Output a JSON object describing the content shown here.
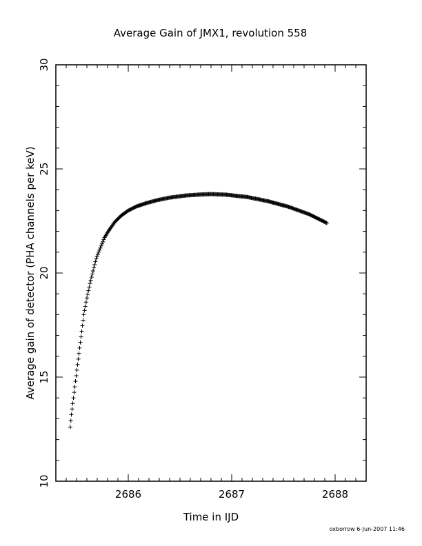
{
  "chart_data": {
    "type": "scatter",
    "title": "Average Gain of JMX1, revolution 558",
    "xlabel": "Time in IJD",
    "ylabel": "Average gain of detector (PHA channels per keV)",
    "xlim": [
      2685.3,
      2688.3
    ],
    "ylim": [
      10,
      30
    ],
    "x_ticks": [
      "2686",
      "2687",
      "2688"
    ],
    "y_ticks": [
      "10",
      "15",
      "20",
      "25",
      "30"
    ],
    "marker": "plus",
    "series": [
      {
        "x": [
          2685.44,
          2685.45,
          2685.47,
          2685.49,
          2685.51,
          2685.53,
          2685.55,
          2685.57,
          2685.6,
          2685.63,
          2685.66,
          2685.69,
          2685.73,
          2685.77,
          2685.82,
          2685.87,
          2685.93,
          2686.0,
          2686.08,
          2686.17,
          2686.28,
          2686.4,
          2686.55,
          2686.7,
          2686.8,
          2686.95,
          2687.15,
          2687.35,
          2687.55,
          2687.75,
          2687.92
        ],
        "y": [
          12.6,
          13.2,
          14.0,
          14.8,
          15.6,
          16.4,
          17.2,
          18.0,
          18.8,
          19.5,
          20.1,
          20.7,
          21.2,
          21.7,
          22.1,
          22.45,
          22.75,
          23.0,
          23.2,
          23.35,
          23.5,
          23.62,
          23.72,
          23.77,
          23.79,
          23.76,
          23.65,
          23.45,
          23.18,
          22.82,
          22.4
        ]
      }
    ],
    "grid": false
  },
  "footer": "oxborrow   6-Jun-2007 11:46"
}
